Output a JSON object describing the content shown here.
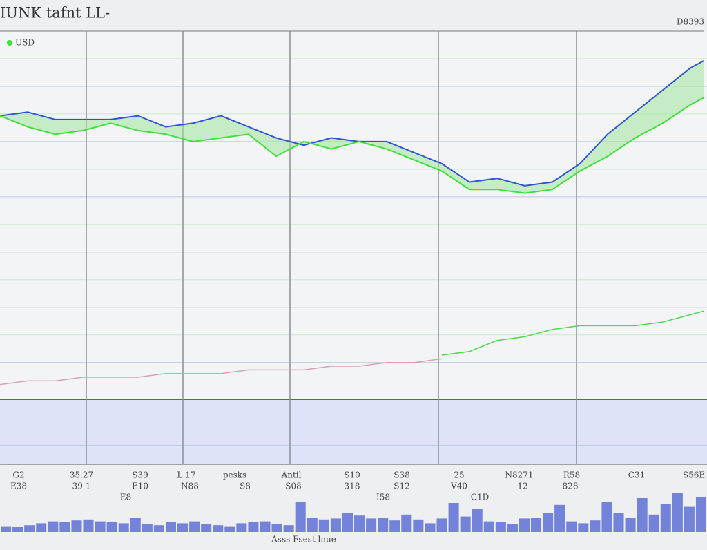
{
  "chart_data": {
    "type": "line",
    "title": "IUNK tafnt LL-",
    "corner_label": "D8393",
    "footer": "Asss Fsest lnue",
    "xlim": [
      0,
      1024
    ],
    "ylim": [
      0,
      100
    ],
    "grid_values": [
      92.5,
      85,
      77.5,
      70,
      62.5,
      55,
      47.5,
      40,
      32.5,
      25,
      17.5,
      10
    ],
    "vlines": [
      125,
      265,
      420,
      635,
      835
    ],
    "x": [
      0,
      40,
      80,
      120,
      160,
      200,
      240,
      280,
      320,
      360,
      400,
      440,
      480,
      520,
      560,
      600,
      640,
      680,
      720,
      760,
      800,
      840,
      880,
      920,
      960,
      1000,
      1020
    ],
    "series": [
      {
        "name": "USD",
        "color": "#2d55d6",
        "values": [
          77,
          78,
          76,
          76,
          76,
          77,
          74,
          75,
          77,
          74,
          71,
          69,
          71,
          70,
          70,
          67,
          64,
          59,
          60,
          58,
          59,
          64,
          72,
          78,
          84,
          90,
          92
        ]
      },
      {
        "color": "#3fe03a",
        "values": [
          77,
          74,
          72,
          73,
          75,
          73,
          72,
          70,
          71,
          72,
          66,
          70,
          68,
          70,
          68,
          65,
          62,
          57,
          57,
          56,
          57,
          62,
          66,
          71,
          75,
          80,
          82
        ]
      },
      {
        "color": "#4cd94a",
        "values": [
          null,
          null,
          null,
          null,
          null,
          null,
          null,
          null,
          null,
          null,
          null,
          null,
          null,
          null,
          null,
          null,
          12,
          13,
          16,
          17,
          19,
          20,
          20,
          20,
          21,
          23,
          24
        ]
      },
      {
        "color": "#d9a0b0",
        "values": [
          4,
          5,
          5,
          6,
          6,
          6,
          7,
          7,
          7,
          8,
          8,
          8,
          9,
          9,
          10,
          10,
          11,
          null,
          null,
          null,
          null,
          null,
          null,
          null,
          null,
          null,
          null
        ]
      }
    ],
    "xticks": [
      {
        "value": 27,
        "label": "G2"
      },
      {
        "value": 118,
        "label": "35.27"
      },
      {
        "value": 203,
        "label": "S39"
      },
      {
        "value": 270,
        "label": "L 17"
      },
      {
        "value": 340,
        "label": "pesks"
      },
      {
        "value": 422,
        "label": "Antil"
      },
      {
        "value": 510,
        "label": "S10"
      },
      {
        "value": 582,
        "label": "S38"
      },
      {
        "value": 665,
        "label": "25"
      },
      {
        "value": 752,
        "label": "N8271"
      },
      {
        "value": 828,
        "label": "R58"
      },
      {
        "value": 922,
        "label": "C31"
      },
      {
        "value": 1005,
        "label": "S56E"
      }
    ],
    "xticks_secondary": [
      {
        "value": 27,
        "label": "E38"
      },
      {
        "value": 118,
        "label": "39 1"
      },
      {
        "value": 203,
        "label": "E10"
      },
      {
        "value": 275,
        "label": "N88"
      },
      {
        "value": 355,
        "label": "S8"
      },
      {
        "value": 425,
        "label": "S08"
      },
      {
        "value": 510,
        "label": "318"
      },
      {
        "value": 582,
        "label": "S12"
      },
      {
        "value": 665,
        "label": "V40"
      },
      {
        "value": 757,
        "label": "12"
      },
      {
        "value": 826,
        "label": "828"
      }
    ],
    "xticks_tertiary": [
      {
        "value": 182,
        "label": "E8"
      },
      {
        "value": 555,
        "label": "I58"
      },
      {
        "value": 695,
        "label": "C1D"
      }
    ],
    "volume": {
      "color": "#4a5fd0",
      "ylim": [
        0,
        100
      ],
      "values": [
        12,
        10,
        14,
        18,
        22,
        20,
        24,
        26,
        22,
        20,
        18,
        30,
        16,
        14,
        20,
        18,
        22,
        16,
        14,
        12,
        18,
        20,
        22,
        16,
        14,
        62,
        30,
        26,
        28,
        40,
        34,
        28,
        30,
        24,
        36,
        26,
        18,
        28,
        60,
        32,
        48,
        22,
        20,
        16,
        28,
        30,
        40,
        56,
        22,
        18,
        24,
        62,
        40,
        30,
        70,
        36,
        58,
        80,
        52,
        72
      ]
    }
  }
}
